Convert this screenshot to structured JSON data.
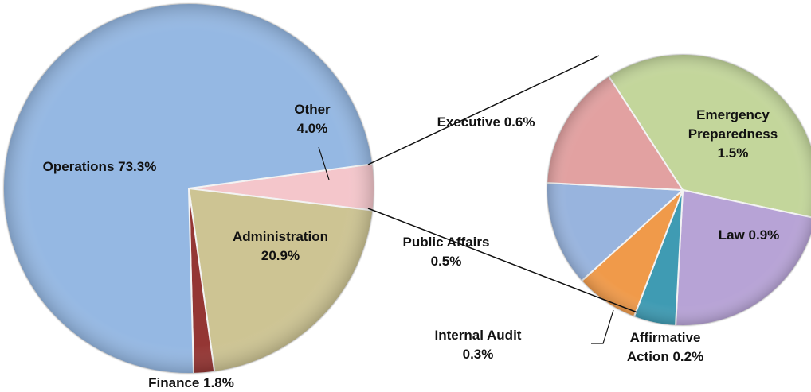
{
  "chart_data": [
    {
      "type": "pie",
      "categories": [
        "Other",
        "Administration",
        "Finance",
        "Operations"
      ],
      "values": [
        4.0,
        20.9,
        1.8,
        73.3
      ],
      "value_labels": [
        "4.0%",
        "20.9%",
        "1.8%",
        "73.3%"
      ],
      "colors": [
        "#f4c6cb",
        "#cdc493",
        "#943634",
        "#95b8e3"
      ]
    },
    {
      "type": "pie",
      "categories": [
        "Emergency Preparedness",
        "Law",
        "Affirmative Action",
        "Internal Audit",
        "Public Affairs",
        "Executive"
      ],
      "values": [
        1.5,
        0.9,
        0.2,
        0.3,
        0.5,
        0.6
      ],
      "value_labels": [
        "1.5%",
        "0.9%",
        "0.2%",
        "0.3%",
        "0.5%",
        "0.6%"
      ],
      "colors": [
        "#c3d69b",
        "#b7a3d6",
        "#3f9bb3",
        "#f09a4a",
        "#98b4de",
        "#e2a1a1"
      ]
    }
  ]
}
